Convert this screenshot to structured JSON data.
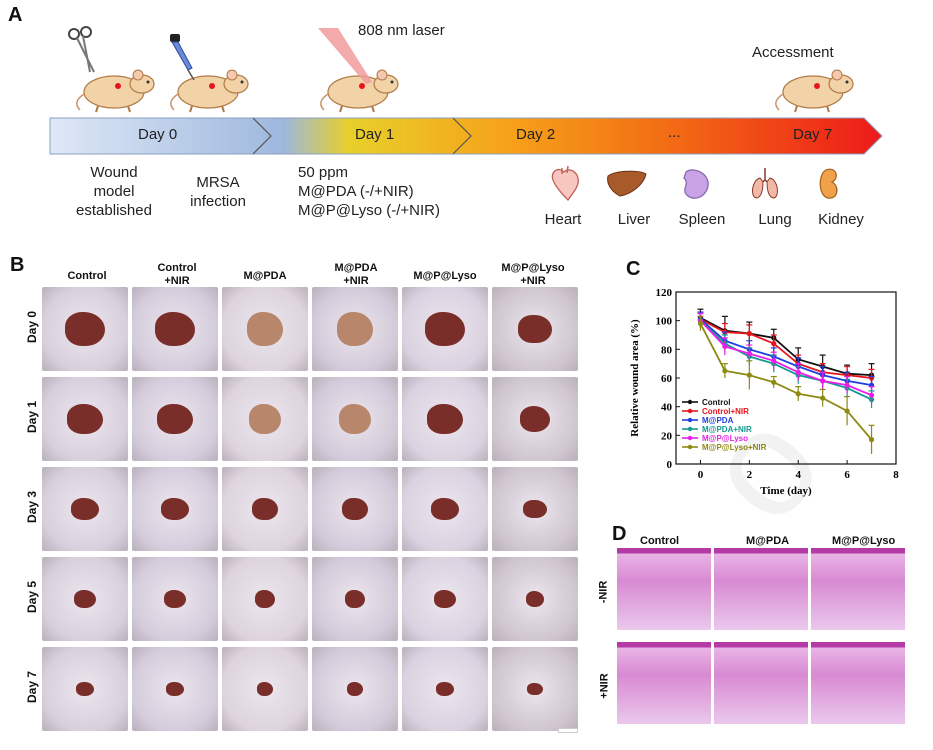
{
  "panels": {
    "A": "A",
    "B": "B",
    "C": "C",
    "D": "D"
  },
  "timeline": {
    "laser_label": "808 nm laser",
    "assessment_label": "Accessment",
    "days": [
      "Day 0",
      "Day 1",
      "Day 2",
      "...",
      "Day 7"
    ],
    "under_day0_a": "Wound\nmodel\nestablished",
    "under_day0_b": "MRSA\ninfection",
    "under_day1": "50 ppm\nM@PDA (-/+NIR)\nM@P@Lyso (-/+NIR)",
    "organs": [
      "Heart",
      "Liver",
      "Spleen",
      "Lung",
      "Kidney"
    ]
  },
  "photos": {
    "columns": [
      "Control",
      "Control\n+NIR",
      "M@PDA",
      "M@PDA\n+NIR",
      "M@P@Lyso",
      "M@P@Lyso\n+NIR"
    ],
    "rows": [
      "Day 0",
      "Day 1",
      "Day 3",
      "Day 5",
      "Day 7"
    ]
  },
  "histology": {
    "columns": [
      "Control",
      "M@PDA",
      "M@P@Lyso"
    ],
    "rows": [
      "-NIR",
      "+NIR"
    ]
  },
  "colors": {
    "timeline_start": "#dde7f5",
    "timeline_mid": "#f2d21a",
    "timeline_end": "#ee1a1a",
    "skin": "#ddd3e3",
    "wound": "#7a2e2a",
    "he_stain": "#d88ad2"
  },
  "chart_data": {
    "type": "line",
    "xlabel": "Time (day)",
    "ylabel": "Relative wound area (%)",
    "xlim": [
      -1,
      8
    ],
    "ylim": [
      0,
      120
    ],
    "xticks": [
      0,
      2,
      4,
      6,
      8
    ],
    "yticks": [
      0,
      20,
      40,
      60,
      80,
      100,
      120
    ],
    "x": [
      0,
      1,
      2,
      3,
      4,
      5,
      6,
      7
    ],
    "legend_position": "lower-left",
    "series": [
      {
        "name": "Control",
        "color": "#111111",
        "values": [
          102,
          93,
          91,
          88,
          73,
          68,
          63,
          62
        ],
        "err": [
          6,
          10,
          8,
          6,
          8,
          8,
          6,
          8
        ]
      },
      {
        "name": "Control+NIR",
        "color": "#e8141c",
        "values": [
          101,
          92,
          91,
          84,
          70,
          64,
          62,
          60
        ],
        "err": [
          5,
          6,
          6,
          6,
          6,
          6,
          6,
          6
        ]
      },
      {
        "name": "M@PDA",
        "color": "#1f3fe0",
        "values": [
          101,
          86,
          80,
          75,
          68,
          62,
          58,
          55
        ],
        "err": [
          5,
          6,
          6,
          6,
          6,
          6,
          6,
          6
        ]
      },
      {
        "name": "M@PDA+NIR",
        "color": "#149a8e",
        "values": [
          100,
          84,
          75,
          70,
          62,
          58,
          53,
          45
        ],
        "err": [
          5,
          6,
          6,
          6,
          6,
          6,
          6,
          6
        ]
      },
      {
        "name": "M@P@Lyso",
        "color": "#e81ee8",
        "values": [
          100,
          82,
          77,
          72,
          64,
          58,
          55,
          48
        ],
        "err": [
          5,
          6,
          6,
          6,
          6,
          6,
          6,
          6
        ]
      },
      {
        "name": "M@P@Lyso+NIR",
        "color": "#8c8a12",
        "values": [
          98,
          65,
          62,
          57,
          49,
          46,
          37,
          17
        ],
        "err": [
          5,
          5,
          10,
          4,
          5,
          6,
          10,
          10
        ]
      }
    ]
  }
}
